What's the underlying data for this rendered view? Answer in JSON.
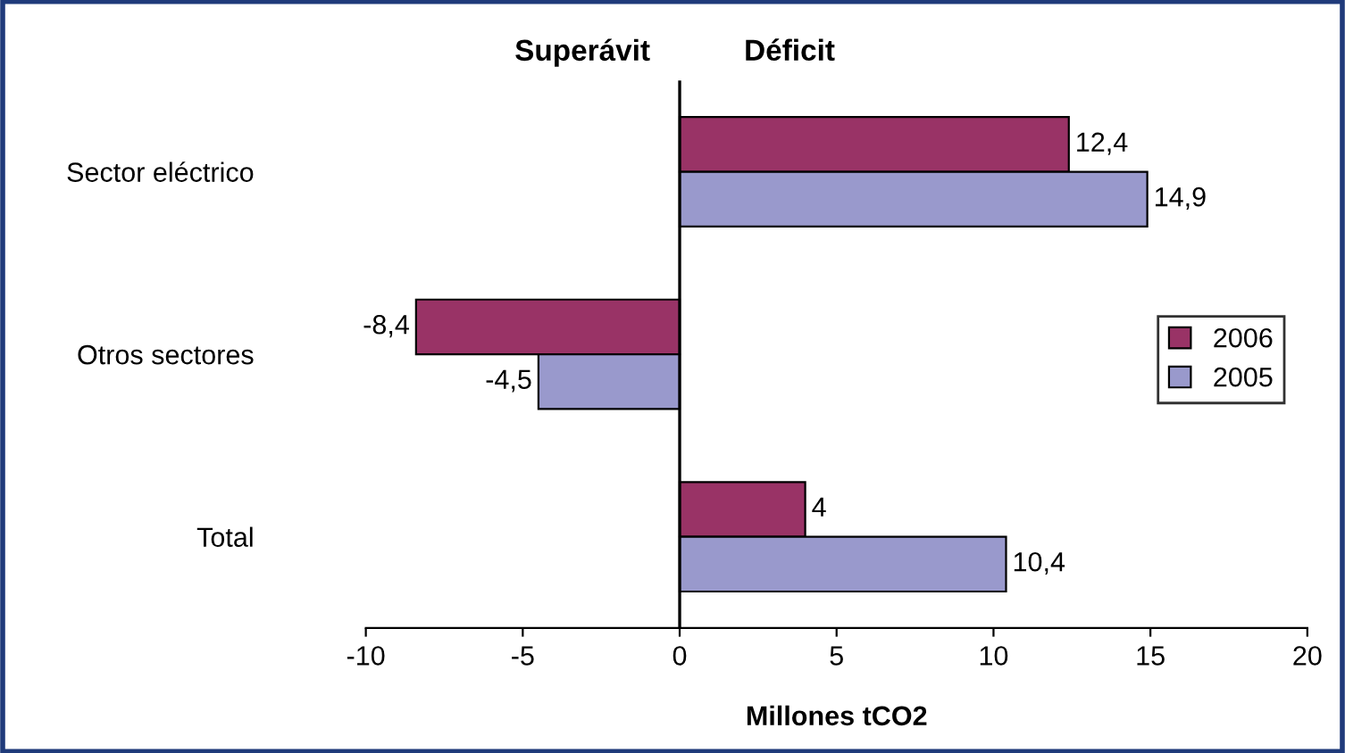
{
  "chart_data": {
    "type": "bar",
    "orientation": "horizontal",
    "xlabel": "Millones tCO2",
    "annotations": [
      "Superávit",
      "Déficit"
    ],
    "categories": [
      "Sector eléctrico",
      "Otros sectores",
      "Total"
    ],
    "series": [
      {
        "name": "2006",
        "color": "#993366",
        "values": [
          12.4,
          -8.4,
          4
        ],
        "value_labels": [
          "12,4",
          "-8,4",
          "4"
        ]
      },
      {
        "name": "2005",
        "color": "#9999cc",
        "values": [
          14.9,
          -4.5,
          10.4
        ],
        "value_labels": [
          "14,9",
          "-4,5",
          "10,4"
        ]
      }
    ],
    "xlim": [
      -10,
      20
    ],
    "xticks": [
      -10,
      -5,
      0,
      5,
      10,
      15,
      20
    ],
    "legend": "right",
    "grid": false,
    "ref_lines": [
      {
        "axis": "x",
        "value": 0,
        "color": "#000000"
      }
    ]
  }
}
